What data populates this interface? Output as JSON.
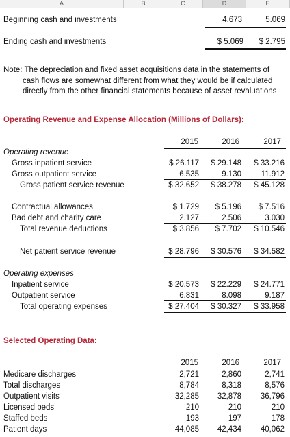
{
  "columns": [
    "A",
    "B",
    "C",
    "D",
    "E"
  ],
  "cash": {
    "beginning_label": "Beginning cash and investments",
    "beginning_d": "4.673",
    "beginning_e": "5.069",
    "ending_label": "Ending cash and investments",
    "ending_d": "$  5.069",
    "ending_e": "$  2.795"
  },
  "note": [
    "Note: The depreciation and fixed asset acquisitions data in the statements of",
    "cash flows are somewhat different from what they would be if calculated",
    "directly from the other financial statements because of asset revaluations"
  ],
  "allocation": {
    "title": "Operating Revenue and Expense Allocation (Millions of Dollars):",
    "years": [
      "2015",
      "2016",
      "2017"
    ],
    "revenue_header": "Operating revenue",
    "rows_revenue": [
      {
        "label": "Gross inpatient service",
        "v": [
          "$ 26.117",
          "$ 29.148",
          "$ 33.216"
        ]
      },
      {
        "label": "Gross outpatient service",
        "v": [
          "6.535",
          "9.130",
          "11.912"
        ]
      },
      {
        "label": "Gross patient service revenue",
        "v": [
          "$ 32.652",
          "$ 38.278",
          "$ 45.128"
        ]
      }
    ],
    "rows_deductions": [
      {
        "label": "Contractual allowances",
        "v": [
          "$  1.729",
          "$  5.196",
          "$  7.516"
        ]
      },
      {
        "label": "Bad debt and charity care",
        "v": [
          "2.127",
          "2.506",
          "3.030"
        ]
      },
      {
        "label": "Total revenue deductions",
        "v": [
          "$  3.856",
          "$  7.702",
          "$ 10.546"
        ]
      }
    ],
    "net": {
      "label": "Net patient service revenue",
      "v": [
        "$ 28.796",
        "$ 30.576",
        "$ 34.582"
      ]
    },
    "expense_header": "Operating expenses",
    "rows_expenses": [
      {
        "label": "Inpatient service",
        "v": [
          "$ 20.573",
          "$ 22.229",
          "$ 24.771"
        ]
      },
      {
        "label": "Outpatient service",
        "v": [
          "6.831",
          "8.098",
          "9.187"
        ]
      },
      {
        "label": "Total operating expenses",
        "v": [
          "$ 27.404",
          "$ 30.327",
          "$ 33.958"
        ]
      }
    ]
  },
  "operating": {
    "title": "Selected Operating Data:",
    "years": [
      "2015",
      "2016",
      "2017"
    ],
    "rows": [
      {
        "label": "Medicare discharges",
        "v": [
          "2,721",
          "2,860",
          "2,741"
        ]
      },
      {
        "label": "Total discharges",
        "v": [
          "8,784",
          "8,318",
          "8,576"
        ]
      },
      {
        "label": "Outpatient visits",
        "v": [
          "32,285",
          "32,878",
          "36,796"
        ]
      },
      {
        "label": "Licensed beds",
        "v": [
          "210",
          "210",
          "210"
        ]
      },
      {
        "label": "Staffed beds",
        "v": [
          "193",
          "197",
          "178"
        ]
      },
      {
        "label": "Patient days",
        "v": [
          "44,085",
          "42,434",
          "40,062"
        ]
      }
    ]
  }
}
